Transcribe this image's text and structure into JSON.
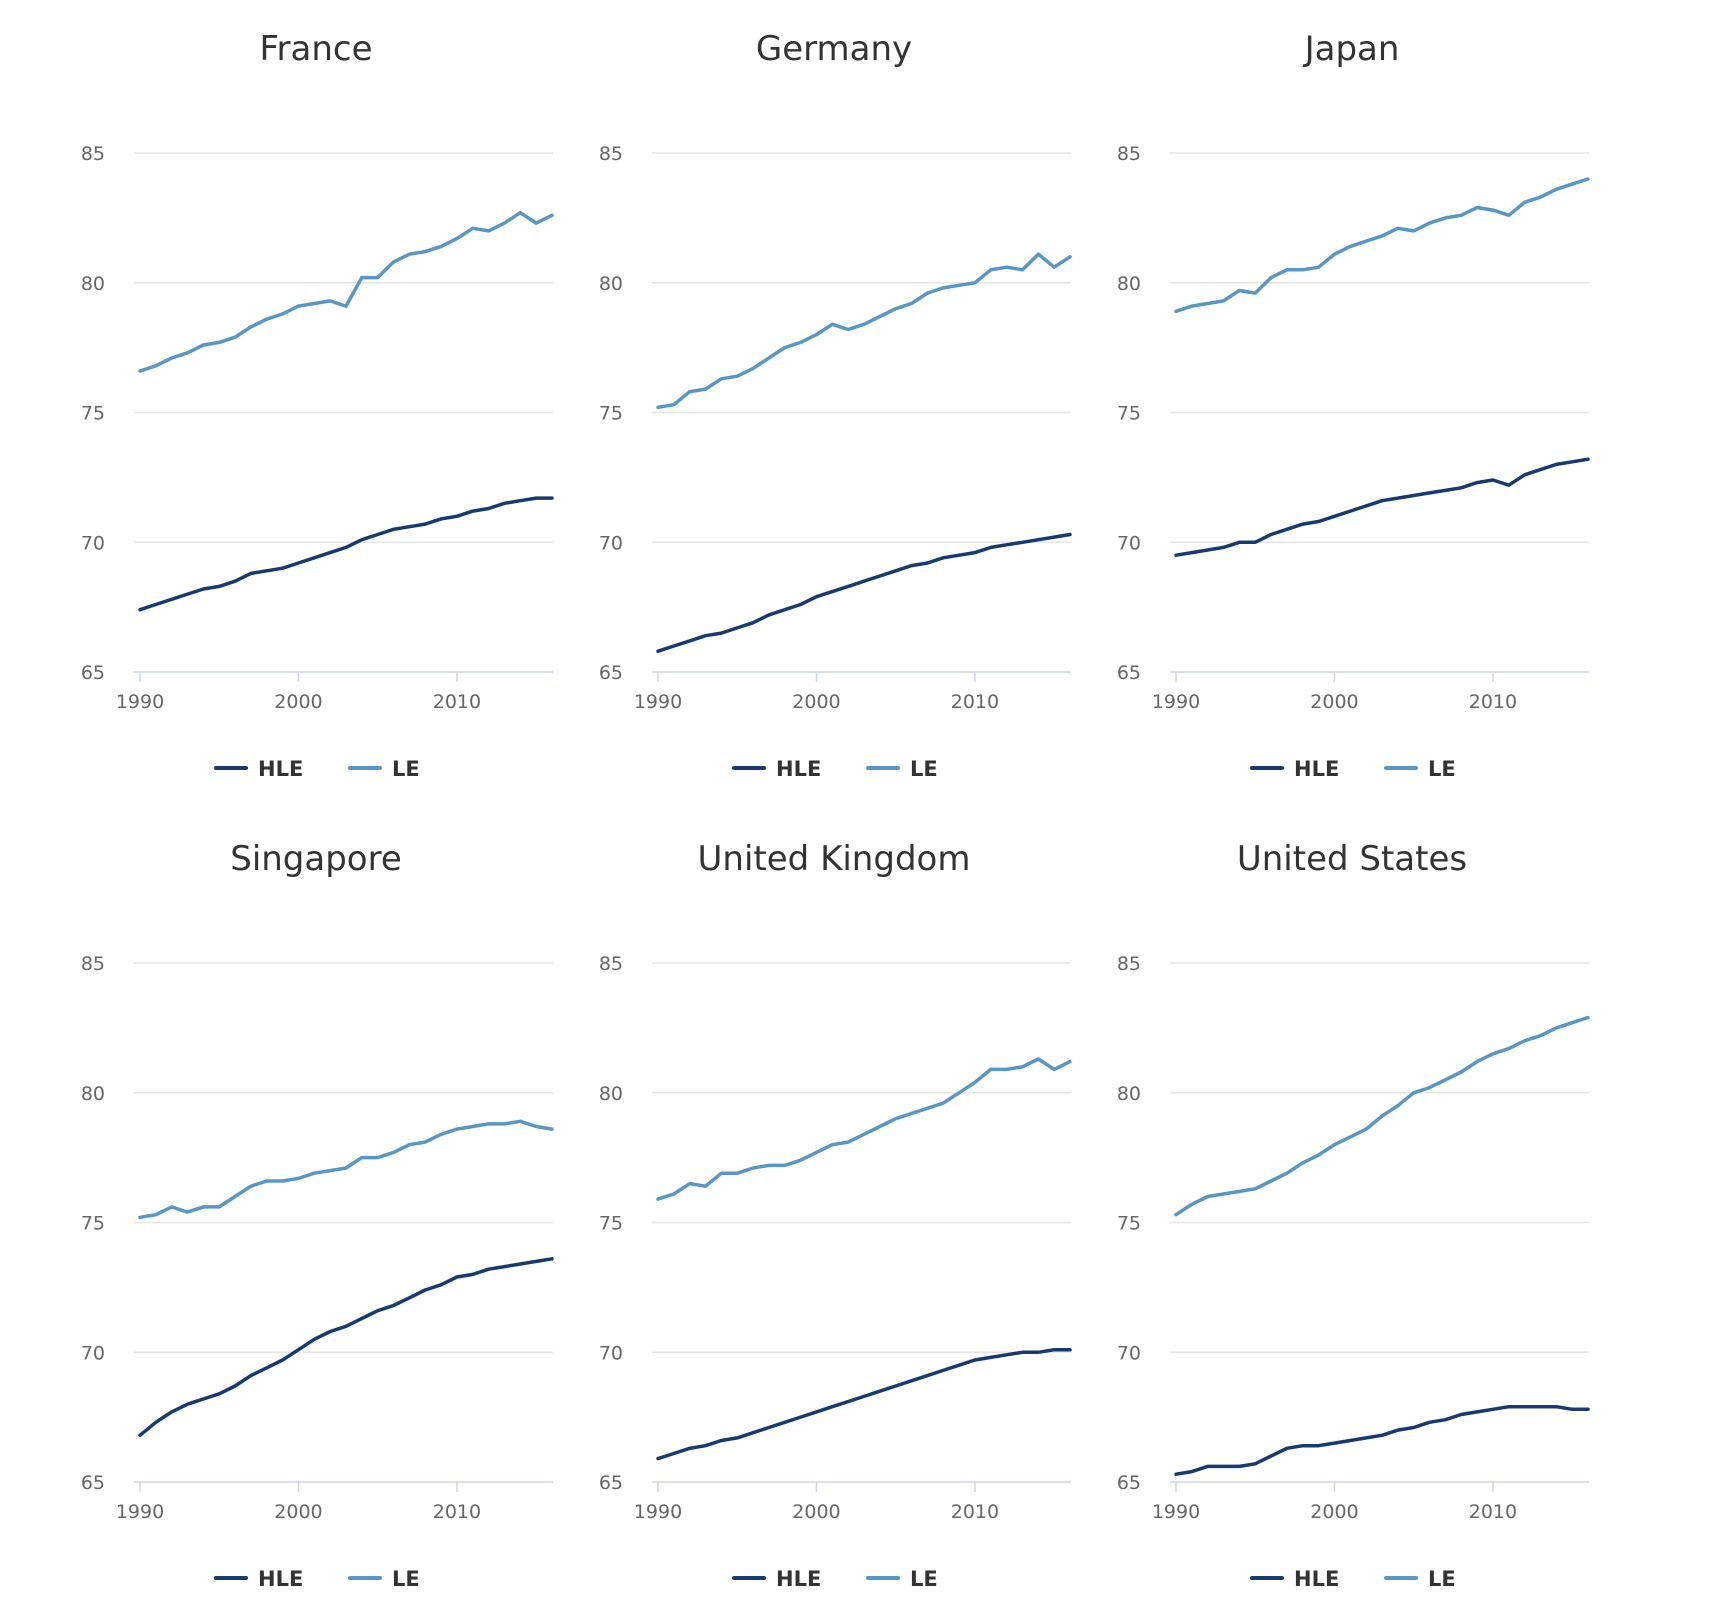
{
  "chart_data": [
    {
      "type": "line",
      "title": "France",
      "xlabel": "",
      "ylabel": "",
      "x": [
        1990,
        1991,
        1992,
        1993,
        1994,
        1995,
        1996,
        1997,
        1998,
        1999,
        2000,
        2001,
        2002,
        2003,
        2004,
        2005,
        2006,
        2007,
        2008,
        2009,
        2010,
        2011,
        2012,
        2013,
        2014,
        2015,
        2016
      ],
      "xlim": [
        1990,
        2016
      ],
      "xticks": [
        1990,
        2000,
        2010
      ],
      "ylim": [
        65,
        85
      ],
      "yticks": [
        65,
        70,
        75,
        80,
        85
      ],
      "legend": "bottom-center",
      "series": [
        {
          "name": "HLE",
          "color": "#1a3a6b",
          "values": [
            67.4,
            67.6,
            67.8,
            68.0,
            68.2,
            68.3,
            68.5,
            68.8,
            68.9,
            69.0,
            69.2,
            69.4,
            69.6,
            69.8,
            70.1,
            70.3,
            70.5,
            70.6,
            70.7,
            70.9,
            71.0,
            71.2,
            71.3,
            71.5,
            71.6,
            71.7,
            71.7
          ]
        },
        {
          "name": "LE",
          "color": "#5b96c0",
          "values": [
            76.6,
            76.8,
            77.1,
            77.3,
            77.6,
            77.7,
            77.9,
            78.3,
            78.6,
            78.8,
            79.1,
            79.2,
            79.3,
            79.1,
            80.2,
            80.2,
            80.8,
            81.1,
            81.2,
            81.4,
            81.7,
            82.1,
            82.0,
            82.3,
            82.7,
            82.3,
            82.6
          ]
        }
      ]
    },
    {
      "type": "line",
      "title": "Germany",
      "xlabel": "",
      "ylabel": "",
      "x": [
        1990,
        1991,
        1992,
        1993,
        1994,
        1995,
        1996,
        1997,
        1998,
        1999,
        2000,
        2001,
        2002,
        2003,
        2004,
        2005,
        2006,
        2007,
        2008,
        2009,
        2010,
        2011,
        2012,
        2013,
        2014,
        2015,
        2016
      ],
      "xlim": [
        1990,
        2016
      ],
      "xticks": [
        1990,
        2000,
        2010
      ],
      "ylim": [
        65,
        85
      ],
      "yticks": [
        65,
        70,
        75,
        80,
        85
      ],
      "legend": "bottom-center",
      "series": [
        {
          "name": "HLE",
          "color": "#1a3a6b",
          "values": [
            65.8,
            66.0,
            66.2,
            66.4,
            66.5,
            66.7,
            66.9,
            67.2,
            67.4,
            67.6,
            67.9,
            68.1,
            68.3,
            68.5,
            68.7,
            68.9,
            69.1,
            69.2,
            69.4,
            69.5,
            69.6,
            69.8,
            69.9,
            70.0,
            70.1,
            70.2,
            70.3
          ]
        },
        {
          "name": "LE",
          "color": "#5b96c0",
          "values": [
            75.2,
            75.3,
            75.8,
            75.9,
            76.3,
            76.4,
            76.7,
            77.1,
            77.5,
            77.7,
            78.0,
            78.4,
            78.2,
            78.4,
            78.7,
            79.0,
            79.2,
            79.6,
            79.8,
            79.9,
            80.0,
            80.5,
            80.6,
            80.5,
            81.1,
            80.6,
            81.0
          ]
        }
      ]
    },
    {
      "type": "line",
      "title": "Japan",
      "xlabel": "",
      "ylabel": "",
      "x": [
        1990,
        1991,
        1992,
        1993,
        1994,
        1995,
        1996,
        1997,
        1998,
        1999,
        2000,
        2001,
        2002,
        2003,
        2004,
        2005,
        2006,
        2007,
        2008,
        2009,
        2010,
        2011,
        2012,
        2013,
        2014,
        2015,
        2016
      ],
      "xlim": [
        1990,
        2016
      ],
      "xticks": [
        1990,
        2000,
        2010
      ],
      "ylim": [
        65,
        85
      ],
      "yticks": [
        65,
        70,
        75,
        80,
        85
      ],
      "legend": "bottom-center",
      "series": [
        {
          "name": "HLE",
          "color": "#1a3a6b",
          "values": [
            69.5,
            69.6,
            69.7,
            69.8,
            70.0,
            70.0,
            70.3,
            70.5,
            70.7,
            70.8,
            71.0,
            71.2,
            71.4,
            71.6,
            71.7,
            71.8,
            71.9,
            72.0,
            72.1,
            72.3,
            72.4,
            72.2,
            72.6,
            72.8,
            73.0,
            73.1,
            73.2
          ]
        },
        {
          "name": "LE",
          "color": "#5b96c0",
          "values": [
            78.9,
            79.1,
            79.2,
            79.3,
            79.7,
            79.6,
            80.2,
            80.5,
            80.5,
            80.6,
            81.1,
            81.4,
            81.6,
            81.8,
            82.1,
            82.0,
            82.3,
            82.5,
            82.6,
            82.9,
            82.8,
            82.6,
            83.1,
            83.3,
            83.6,
            83.8,
            84.0
          ]
        }
      ]
    },
    {
      "type": "line",
      "title": "Singapore",
      "xlabel": "",
      "ylabel": "",
      "x": [
        1990,
        1991,
        1992,
        1993,
        1994,
        1995,
        1996,
        1997,
        1998,
        1999,
        2000,
        2001,
        2002,
        2003,
        2004,
        2005,
        2006,
        2007,
        2008,
        2009,
        2010,
        2011,
        2012,
        2013,
        2014,
        2015,
        2016
      ],
      "xlim": [
        1990,
        2016
      ],
      "xticks": [
        1990,
        2000,
        2010
      ],
      "ylim": [
        65,
        85
      ],
      "yticks": [
        65,
        70,
        75,
        80,
        85
      ],
      "legend": "bottom-center",
      "series": [
        {
          "name": "HLE",
          "color": "#1a3a6b",
          "values": [
            66.8,
            67.3,
            67.7,
            68.0,
            68.2,
            68.4,
            68.7,
            69.1,
            69.4,
            69.7,
            70.1,
            70.5,
            70.8,
            71.0,
            71.3,
            71.6,
            71.8,
            72.1,
            72.4,
            72.6,
            72.9,
            73.0,
            73.2,
            73.3,
            73.4,
            73.5,
            73.6
          ]
        },
        {
          "name": "LE",
          "color": "#5b96c0",
          "values": [
            75.2,
            75.3,
            75.6,
            75.4,
            75.6,
            75.6,
            76.0,
            76.4,
            76.6,
            76.6,
            76.7,
            76.9,
            77.0,
            77.1,
            77.5,
            77.5,
            77.7,
            78.0,
            78.1,
            78.4,
            78.6,
            78.7,
            78.8,
            78.8,
            78.9,
            78.7,
            78.6
          ]
        }
      ]
    },
    {
      "type": "line",
      "title": "United Kingdom",
      "xlabel": "",
      "ylabel": "",
      "x": [
        1990,
        1991,
        1992,
        1993,
        1994,
        1995,
        1996,
        1997,
        1998,
        1999,
        2000,
        2001,
        2002,
        2003,
        2004,
        2005,
        2006,
        2007,
        2008,
        2009,
        2010,
        2011,
        2012,
        2013,
        2014,
        2015,
        2016
      ],
      "xlim": [
        1990,
        2016
      ],
      "xticks": [
        1990,
        2000,
        2010
      ],
      "ylim": [
        65,
        85
      ],
      "yticks": [
        65,
        70,
        75,
        80,
        85
      ],
      "legend": "bottom-center",
      "series": [
        {
          "name": "HLE",
          "color": "#1a3a6b",
          "values": [
            65.9,
            66.1,
            66.3,
            66.4,
            66.6,
            66.7,
            66.9,
            67.1,
            67.3,
            67.5,
            67.7,
            67.9,
            68.1,
            68.3,
            68.5,
            68.7,
            68.9,
            69.1,
            69.3,
            69.5,
            69.7,
            69.8,
            69.9,
            70.0,
            70.0,
            70.1,
            70.1
          ]
        },
        {
          "name": "LE",
          "color": "#5b96c0",
          "values": [
            75.9,
            76.1,
            76.5,
            76.4,
            76.9,
            76.9,
            77.1,
            77.2,
            77.2,
            77.4,
            77.7,
            78.0,
            78.1,
            78.4,
            78.7,
            79.0,
            79.2,
            79.4,
            79.6,
            80.0,
            80.4,
            80.9,
            80.9,
            81.0,
            81.3,
            80.9,
            81.2
          ]
        }
      ]
    },
    {
      "type": "line",
      "title": "United States",
      "xlabel": "",
      "ylabel": "",
      "x": [
        1990,
        1991,
        1992,
        1993,
        1994,
        1995,
        1996,
        1997,
        1998,
        1999,
        2000,
        2001,
        2002,
        2003,
        2004,
        2005,
        2006,
        2007,
        2008,
        2009,
        2010,
        2011,
        2012,
        2013,
        2014,
        2015,
        2016
      ],
      "xlim": [
        1990,
        2016
      ],
      "xticks": [
        1990,
        2000,
        2010
      ],
      "ylim": [
        65,
        85
      ],
      "yticks": [
        65,
        70,
        75,
        80,
        85
      ],
      "legend": "bottom-center",
      "series": [
        {
          "name": "HLE",
          "color": "#1a3a6b",
          "values": [
            65.3,
            65.4,
            65.6,
            65.6,
            65.6,
            65.7,
            66.0,
            66.3,
            66.4,
            66.4,
            66.5,
            66.6,
            66.7,
            66.8,
            67.0,
            67.1,
            67.3,
            67.4,
            67.6,
            67.7,
            67.8,
            67.9,
            67.9,
            67.9,
            67.9,
            67.8,
            67.8
          ]
        },
        {
          "name": "LE",
          "color": "#5b96c0",
          "values": [
            75.3,
            75.7,
            76.0,
            76.1,
            76.2,
            76.3,
            76.6,
            76.9,
            77.3,
            77.6,
            78.0,
            78.3,
            78.6,
            79.1,
            79.5,
            80.0,
            80.2,
            80.5,
            80.8,
            81.2,
            81.5,
            81.7,
            82.0,
            82.2,
            82.5,
            82.7,
            82.9
          ]
        }
      ]
    }
  ]
}
